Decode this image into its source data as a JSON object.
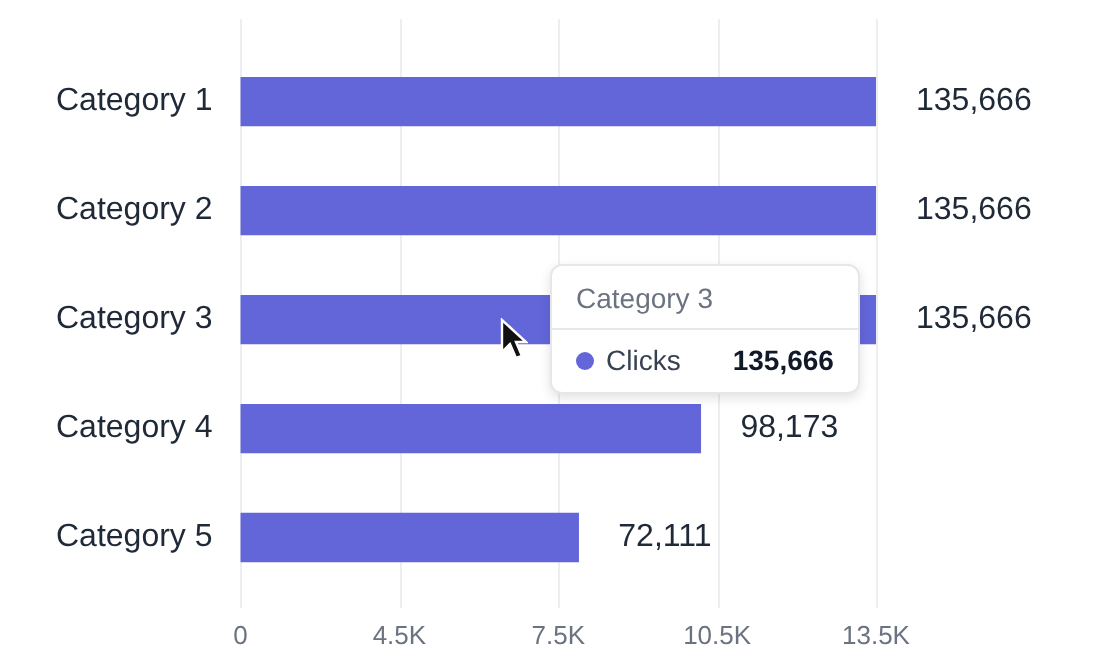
{
  "chart_data": {
    "type": "bar",
    "orientation": "horizontal",
    "categories": [
      "Category 1",
      "Category 2",
      "Category 3",
      "Category 4",
      "Category 5"
    ],
    "series": [
      {
        "name": "Clicks",
        "color": "#6366d9",
        "values": [
          135666,
          135666,
          135666,
          98173,
          72111
        ],
        "value_labels": [
          "135,666",
          "135,666",
          "135,666",
          "98,173",
          "72,111"
        ]
      }
    ],
    "grid": "x",
    "legend": "right",
    "annotations": [
      "0",
      "4.5K",
      "7.5K",
      "10.5K",
      "13.5K",
      "Category 3"
    ]
  }
}
